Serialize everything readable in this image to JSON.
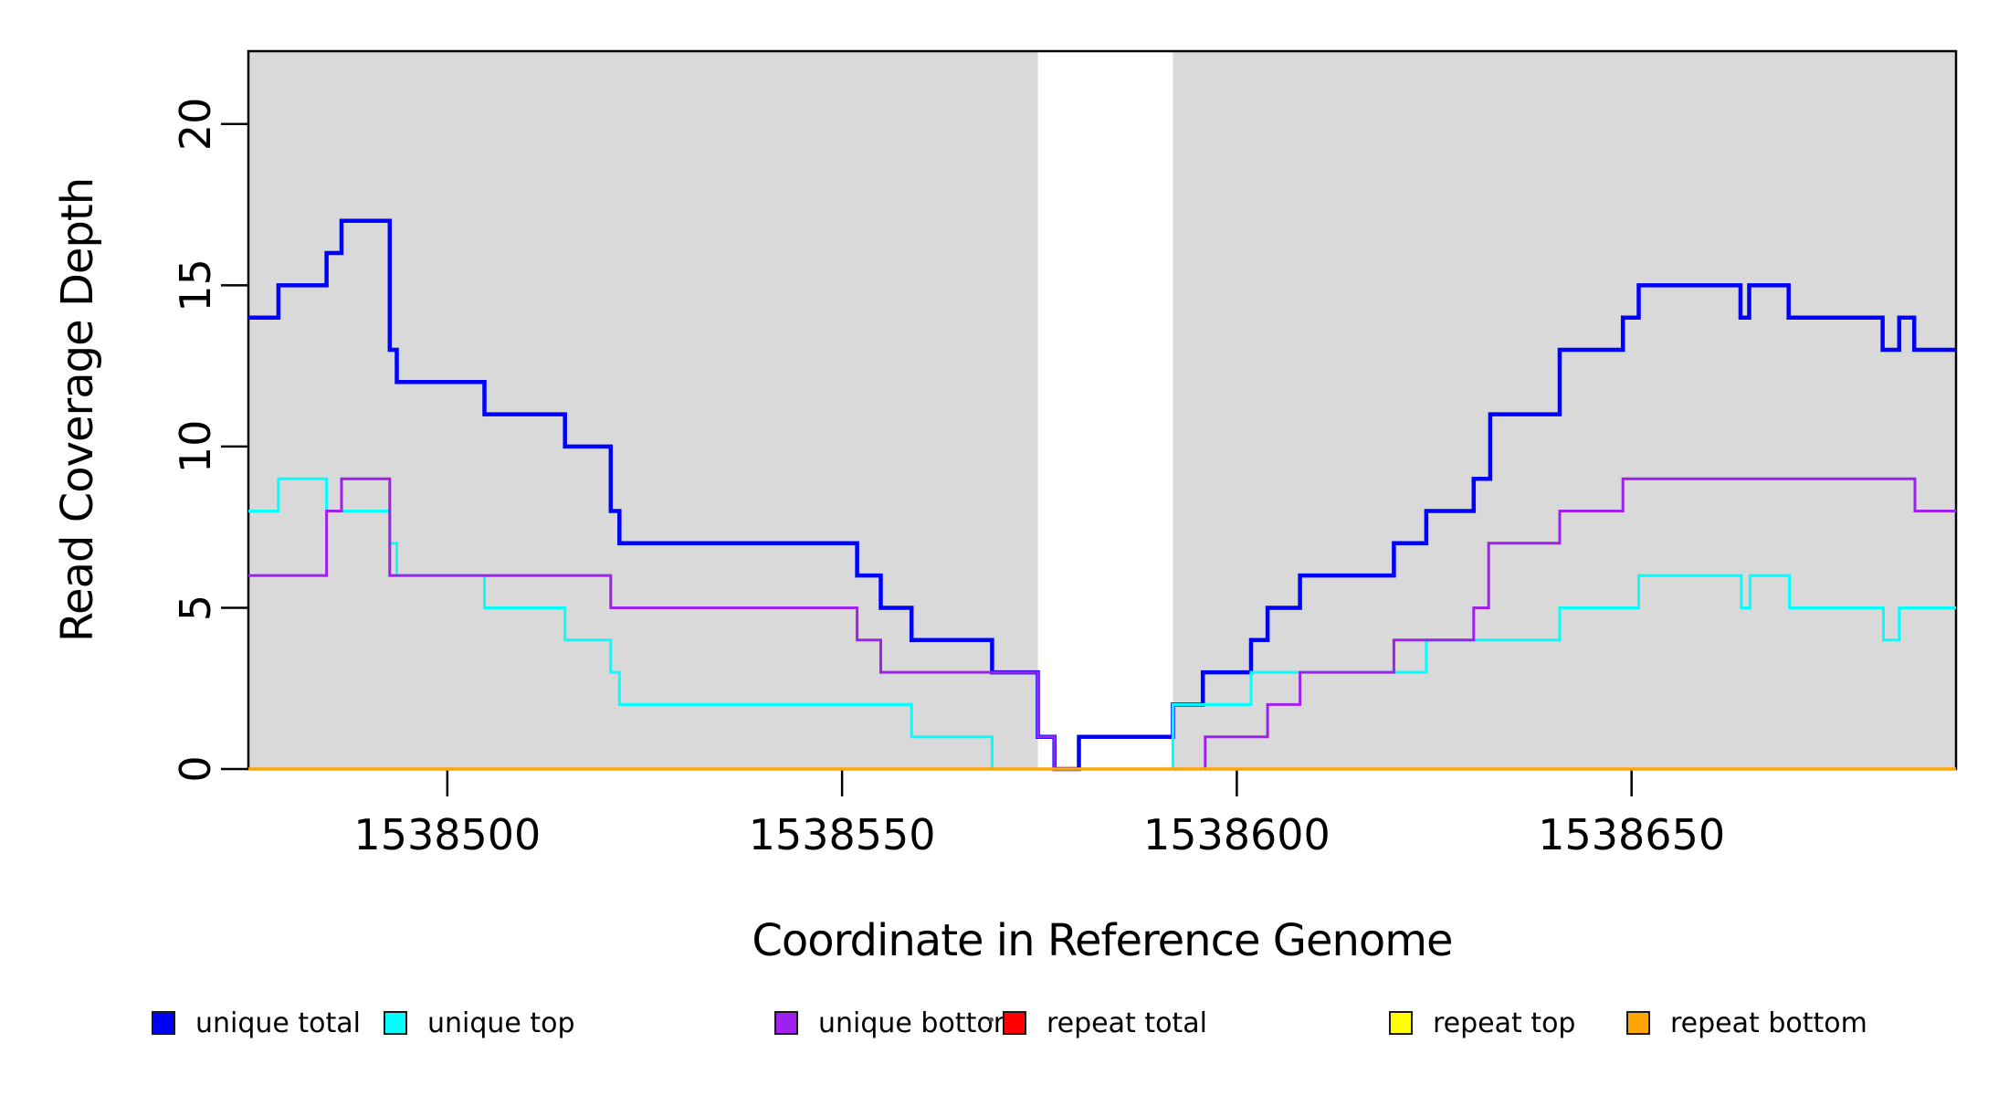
{
  "figure": {
    "background_color": "#ffffff",
    "band_color": "#d9d9d9",
    "box_color": "#000000",
    "tick_color": "#000000"
  },
  "chart_data": {
    "type": "line",
    "subtype": "step-post",
    "title": "",
    "xlabel": "Coordinate in Reference Genome",
    "ylabel": "Read Coverage Depth",
    "xlim": [
      1538474.8,
      1538691.1
    ],
    "ylim": [
      0,
      22.26
    ],
    "x_ticks": [
      1538500,
      1538550,
      1538600,
      1538650
    ],
    "y_ticks": [
      0,
      5,
      10,
      15,
      20
    ],
    "grid": false,
    "legend_position": "bottom",
    "shaded_x_regions": [
      [
        1538474.8,
        1538574.8
      ],
      [
        1538591.9,
        1538691.1
      ]
    ],
    "series": [
      {
        "name": "unique total",
        "color": "#0000FF",
        "line_width": 4.5,
        "breakpoints": [
          [
            1538474.8,
            14
          ],
          [
            1538478.6,
            15
          ],
          [
            1538484.7,
            16
          ],
          [
            1538486.6,
            17
          ],
          [
            1538492.7,
            13
          ],
          [
            1538493.6,
            12
          ],
          [
            1538504.7,
            11
          ],
          [
            1538514.9,
            10
          ],
          [
            1538520.7,
            8
          ],
          [
            1538521.8,
            7
          ],
          [
            1538551.9,
            6
          ],
          [
            1538554.9,
            5
          ],
          [
            1538558.8,
            4
          ],
          [
            1538569.0,
            3
          ],
          [
            1538574.8,
            1
          ],
          [
            1538576.9,
            0
          ],
          [
            1538580.0,
            1
          ],
          [
            1538591.9,
            2
          ],
          [
            1538595.7,
            3
          ],
          [
            1538601.8,
            4
          ],
          [
            1538603.9,
            5
          ],
          [
            1538608.0,
            6
          ],
          [
            1538619.9,
            7
          ],
          [
            1538624.0,
            8
          ],
          [
            1538630.0,
            9
          ],
          [
            1538632.1,
            11
          ],
          [
            1538640.9,
            13
          ],
          [
            1538648.9,
            14
          ],
          [
            1538650.9,
            15
          ],
          [
            1538663.8,
            14
          ],
          [
            1538664.9,
            15
          ],
          [
            1538669.9,
            14
          ],
          [
            1538681.8,
            13
          ],
          [
            1538683.9,
            14
          ],
          [
            1538685.8,
            13
          ]
        ]
      },
      {
        "name": "unique top",
        "color": "#00FFFF",
        "line_width": 3,
        "breakpoints": [
          [
            1538474.8,
            8
          ],
          [
            1538478.6,
            9
          ],
          [
            1538484.7,
            8
          ],
          [
            1538492.7,
            7
          ],
          [
            1538493.6,
            6
          ],
          [
            1538504.7,
            5
          ],
          [
            1538514.9,
            4
          ],
          [
            1538520.7,
            3
          ],
          [
            1538521.8,
            2
          ],
          [
            1538558.8,
            1
          ],
          [
            1538569.0,
            0
          ],
          [
            1538591.9,
            2
          ],
          [
            1538601.8,
            3
          ],
          [
            1538624.0,
            4
          ],
          [
            1538640.9,
            5
          ],
          [
            1538650.9,
            6
          ],
          [
            1538663.9,
            5
          ],
          [
            1538665.0,
            6
          ],
          [
            1538670.0,
            5
          ],
          [
            1538681.9,
            4
          ],
          [
            1538683.9,
            5
          ]
        ]
      },
      {
        "name": "unique bottom",
        "color": "#A020F0",
        "line_width": 3,
        "breakpoints": [
          [
            1538474.8,
            6
          ],
          [
            1538484.7,
            8
          ],
          [
            1538486.6,
            9
          ],
          [
            1538492.7,
            6
          ],
          [
            1538520.7,
            5
          ],
          [
            1538551.9,
            4
          ],
          [
            1538554.9,
            3
          ],
          [
            1538574.8,
            1
          ],
          [
            1538576.9,
            0
          ],
          [
            1538596.0,
            1
          ],
          [
            1538603.9,
            2
          ],
          [
            1538608.0,
            3
          ],
          [
            1538619.9,
            4
          ],
          [
            1538630.0,
            5
          ],
          [
            1538631.9,
            7
          ],
          [
            1538640.9,
            8
          ],
          [
            1538648.9,
            9
          ],
          [
            1538685.9,
            8
          ]
        ]
      },
      {
        "name": "repeat total",
        "color": "#FF0000",
        "line_width": 3,
        "breakpoints": [
          [
            1538474.8,
            0
          ]
        ]
      },
      {
        "name": "repeat top",
        "color": "#FFFF00",
        "line_width": 3,
        "breakpoints": [
          [
            1538474.8,
            0
          ]
        ]
      },
      {
        "name": "repeat bottom",
        "color": "#FFA500",
        "line_width": 3.5,
        "breakpoints": [
          [
            1538474.8,
            0
          ]
        ]
      }
    ]
  },
  "legend": {
    "items": [
      {
        "label": "unique total",
        "color": "#0000FF"
      },
      {
        "label": "unique top",
        "color": "#00FFFF"
      },
      {
        "label": "unique bottom",
        "color": "#A020F0"
      },
      {
        "label": "repeat total",
        "color": "#FF0000"
      },
      {
        "label": "repeat top",
        "color": "#FFFF00"
      },
      {
        "label": "repeat bottom",
        "color": "#FFA500"
      }
    ]
  }
}
